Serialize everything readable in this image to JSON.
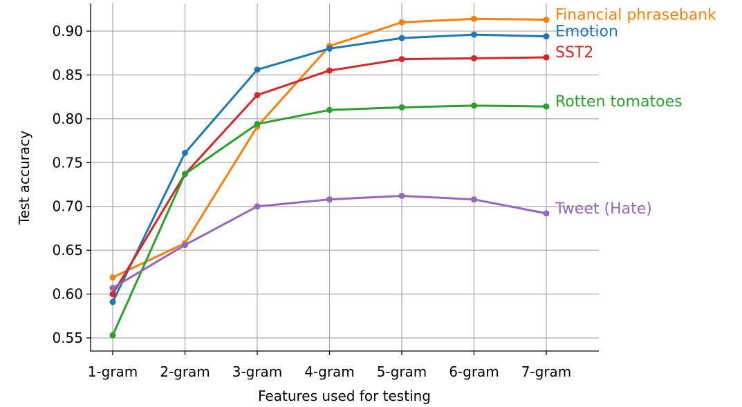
{
  "chart_data": {
    "type": "line",
    "title": "",
    "xlabel": "Features used for testing",
    "ylabel": "Test accuracy",
    "categories": [
      "1-gram",
      "2-gram",
      "3-gram",
      "4-gram",
      "5-gram",
      "6-gram",
      "7-gram"
    ],
    "ylim": [
      0.537,
      0.93
    ],
    "yticks": [
      0.55,
      0.6,
      0.65,
      0.7,
      0.75,
      0.8,
      0.85,
      0.9
    ],
    "ytick_labels": [
      "0.55",
      "0.60",
      "0.65",
      "0.70",
      "0.75",
      "0.80",
      "0.85",
      "0.90"
    ],
    "grid": true,
    "legend": "inline labels at right end of each line",
    "series": [
      {
        "name": "Financial phrasebank",
        "color": "#ff7f0e",
        "values": [
          0.619,
          0.658,
          0.791,
          0.883,
          0.91,
          0.914,
          0.913
        ]
      },
      {
        "name": "Emotion",
        "color": "#1f77b4",
        "values": [
          0.591,
          0.761,
          0.856,
          0.88,
          0.892,
          0.896,
          0.894
        ]
      },
      {
        "name": "SST2",
        "color": "#d62728",
        "values": [
          0.6,
          0.737,
          0.827,
          0.855,
          0.868,
          0.869,
          0.87
        ]
      },
      {
        "name": "Rotten tomatoes",
        "color": "#2ca02c",
        "values": [
          0.553,
          0.737,
          0.794,
          0.81,
          0.813,
          0.815,
          0.814
        ]
      },
      {
        "name": "Tweet (Hate)",
        "color": "#9467bd",
        "values": [
          0.607,
          0.656,
          0.7,
          0.708,
          0.712,
          0.708,
          0.692
        ]
      }
    ]
  }
}
